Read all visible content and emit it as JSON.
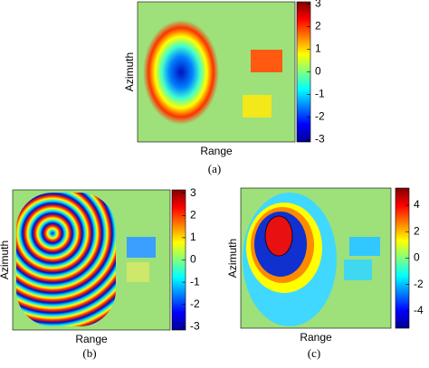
{
  "panels": [
    {
      "caption": "(a)",
      "xlabel": "Range",
      "ylabel": "Azimuth",
      "colorbar": {
        "lim": [
          -3.1,
          3.1
        ],
        "ticks": [
          3,
          2,
          1,
          0,
          -1,
          -2,
          -3
        ]
      }
    },
    {
      "caption": "(b)",
      "xlabel": "Range",
      "ylabel": "Azimuth",
      "colorbar": {
        "lim": [
          -3.15,
          3.15
        ],
        "ticks": [
          3,
          2,
          1,
          0,
          -1,
          -2,
          -3
        ]
      }
    },
    {
      "caption": "(c)",
      "xlabel": "Range",
      "ylabel": "Azimuth",
      "colorbar": {
        "lim": [
          -5.3,
          5.3
        ],
        "ticks": [
          4,
          2,
          0,
          -2,
          -4
        ]
      }
    }
  ]
}
